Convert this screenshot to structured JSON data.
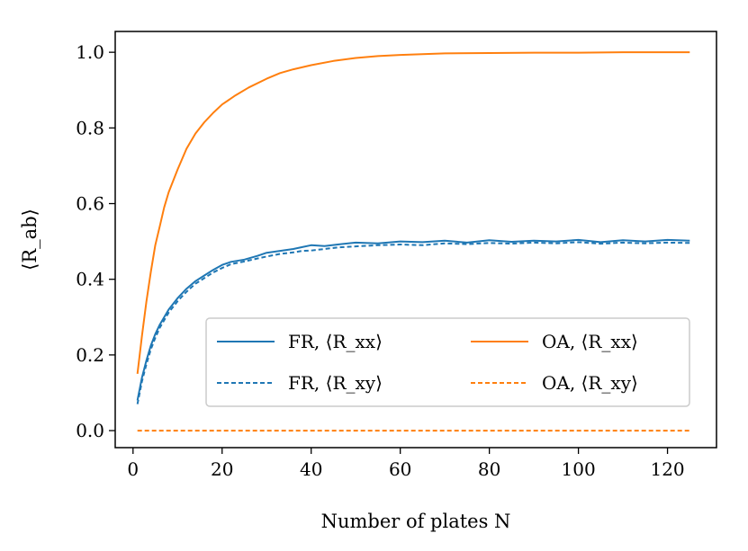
{
  "chart_data": {
    "type": "line",
    "title": "",
    "xlabel": "Number of plates N",
    "ylabel": "⟨R_ab⟩",
    "xlim": [
      -4,
      131
    ],
    "ylim": [
      -0.045,
      1.055
    ],
    "xticks": [
      0,
      20,
      40,
      60,
      80,
      100,
      120
    ],
    "yticks": [
      0.0,
      0.2,
      0.4,
      0.6,
      0.8,
      1.0
    ],
    "xtick_labels": [
      "0",
      "20",
      "40",
      "60",
      "80",
      "100",
      "120"
    ],
    "ytick_labels": [
      "0.0",
      "0.2",
      "0.4",
      "0.6",
      "0.8",
      "1.0"
    ],
    "grid": false,
    "legend": {
      "placement": "lower-right",
      "columns": 2
    },
    "series": [
      {
        "name": "FR, ⟨R_xx⟩",
        "color": "#1f77b4",
        "style": "solid",
        "x": [
          1,
          2,
          3,
          4,
          5,
          6,
          8,
          10,
          12,
          14,
          16,
          18,
          20,
          22,
          25,
          28,
          30,
          33,
          36,
          38,
          40,
          43,
          46,
          50,
          55,
          60,
          65,
          70,
          75,
          80,
          85,
          90,
          95,
          100,
          105,
          110,
          115,
          120,
          125
        ],
        "values": [
          0.08,
          0.14,
          0.185,
          0.225,
          0.255,
          0.28,
          0.32,
          0.35,
          0.375,
          0.395,
          0.41,
          0.425,
          0.438,
          0.446,
          0.452,
          0.462,
          0.47,
          0.475,
          0.48,
          0.485,
          0.49,
          0.488,
          0.492,
          0.497,
          0.495,
          0.5,
          0.498,
          0.502,
          0.497,
          0.503,
          0.499,
          0.502,
          0.5,
          0.504,
          0.498,
          0.503,
          0.5,
          0.504,
          0.502
        ]
      },
      {
        "name": "FR, ⟨R_xy⟩",
        "color": "#1f77b4",
        "style": "dotted",
        "x": [
          1,
          2,
          3,
          4,
          5,
          6,
          8,
          10,
          12,
          14,
          16,
          18,
          20,
          22,
          25,
          28,
          30,
          33,
          36,
          38,
          40,
          43,
          46,
          50,
          55,
          60,
          65,
          70,
          75,
          80,
          85,
          90,
          95,
          100,
          105,
          110,
          115,
          120,
          125
        ],
        "values": [
          0.07,
          0.13,
          0.175,
          0.215,
          0.245,
          0.272,
          0.312,
          0.342,
          0.367,
          0.388,
          0.403,
          0.418,
          0.43,
          0.44,
          0.447,
          0.455,
          0.46,
          0.467,
          0.471,
          0.475,
          0.476,
          0.48,
          0.484,
          0.487,
          0.49,
          0.492,
          0.49,
          0.495,
          0.493,
          0.496,
          0.494,
          0.497,
          0.495,
          0.498,
          0.494,
          0.497,
          0.495,
          0.497,
          0.496
        ]
      },
      {
        "name": "OA, ⟨R_xx⟩",
        "color": "#ff7f0e",
        "style": "solid",
        "x": [
          1,
          2,
          3,
          4,
          5,
          6,
          7,
          8,
          10,
          12,
          14,
          16,
          18,
          20,
          23,
          26,
          30,
          33,
          36,
          40,
          45,
          50,
          55,
          60,
          65,
          70,
          80,
          90,
          100,
          110,
          120,
          125
        ],
        "values": [
          0.15,
          0.25,
          0.34,
          0.42,
          0.49,
          0.54,
          0.59,
          0.63,
          0.69,
          0.745,
          0.785,
          0.815,
          0.84,
          0.862,
          0.886,
          0.907,
          0.93,
          0.945,
          0.955,
          0.966,
          0.977,
          0.985,
          0.99,
          0.993,
          0.995,
          0.997,
          0.998,
          0.999,
          0.999,
          1.0,
          1.0,
          1.0
        ]
      },
      {
        "name": "OA, ⟨R_xy⟩",
        "color": "#ff7f0e",
        "style": "dotted",
        "x": [
          1,
          125
        ],
        "values": [
          0.0,
          0.0
        ]
      }
    ]
  }
}
